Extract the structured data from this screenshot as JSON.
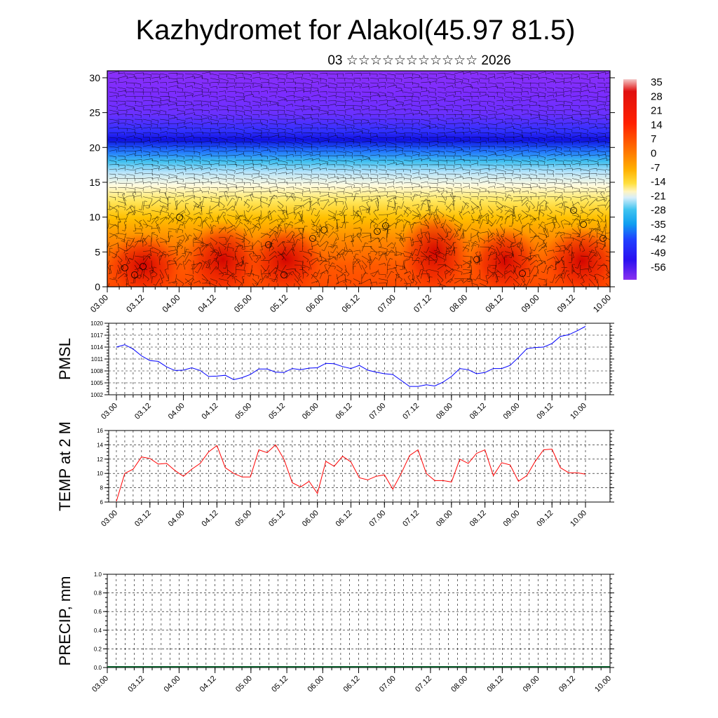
{
  "title": "Kazhydromet for Alakol(45.97 81.5)",
  "subtitle": "03 ☆☆☆☆☆☆☆☆☆☆☆ 2026",
  "time_labels": [
    "03.00",
    "03.12",
    "04.00",
    "04.12",
    "05.00",
    "05.12",
    "06.00",
    "06.12",
    "07.00",
    "07.12",
    "08.00",
    "08.12",
    "09.00",
    "09.12",
    "10.00"
  ],
  "chart_data": [
    {
      "type": "heatmap",
      "name": "upper-air-section",
      "y_ticks": [
        0,
        5,
        10,
        15,
        20,
        25,
        30
      ],
      "ylim": [
        0,
        31
      ],
      "colorbar_labels": [
        "35",
        "28",
        "21",
        "14",
        "7",
        "0",
        "-7",
        "-14",
        "-21",
        "-28",
        "-35",
        "-42",
        "-49",
        "-56"
      ],
      "colors": {
        "warm": "#d80000",
        "mid_warm": "#ff7a00",
        "yellow": "#ffe04a",
        "light": "#e8f2ff",
        "cyan": "#28b8f0",
        "blue": "#1a1aff",
        "purple": "#7a2cff"
      }
    },
    {
      "type": "line",
      "name": "PMSL",
      "ylabel": "PMSL",
      "y_ticks": [
        1002,
        1005,
        1008,
        1011,
        1014,
        1017,
        1020
      ],
      "ylim": [
        1002,
        1020
      ],
      "color": "#0000ff",
      "values": [
        1014.0,
        1014.6,
        1013.5,
        1011.8,
        1010.6,
        1010.4,
        1009.0,
        1008.1,
        1008.2,
        1008.8,
        1008.1,
        1006.6,
        1006.7,
        1006.9,
        1005.8,
        1006.3,
        1007.1,
        1008.5,
        1008.5,
        1007.7,
        1007.6,
        1008.6,
        1008.3,
        1008.7,
        1008.8,
        1009.9,
        1009.8,
        1009.1,
        1008.6,
        1009.4,
        1008.2,
        1007.7,
        1007.3,
        1007.1,
        1005.6,
        1004.1,
        1004.1,
        1004.5,
        1004.2,
        1005.2,
        1006.6,
        1008.6,
        1008.3,
        1007.3,
        1007.6,
        1008.6,
        1008.6,
        1009.4,
        1011.4,
        1013.6,
        1013.9,
        1014.0,
        1014.9,
        1016.7,
        1017.1,
        1018.1,
        1019.2
      ]
    },
    {
      "type": "line",
      "name": "TEMP at 2 M",
      "ylabel": "TEMP at 2 M",
      "y_ticks": [
        6,
        8,
        10,
        12,
        14,
        16
      ],
      "ylim": [
        6,
        16
      ],
      "color": "#ff0000",
      "values": [
        6.1,
        10.0,
        10.6,
        12.3,
        12.1,
        11.3,
        11.4,
        10.4,
        9.6,
        10.6,
        11.4,
        13.0,
        13.9,
        10.8,
        10.0,
        9.5,
        9.5,
        13.3,
        12.9,
        14.0,
        12.0,
        8.7,
        8.1,
        8.9,
        7.2,
        11.7,
        11.0,
        12.4,
        11.6,
        9.4,
        9.1,
        9.6,
        9.8,
        7.8,
        10.0,
        12.5,
        13.3,
        10.0,
        9.0,
        9.0,
        8.8,
        12.0,
        11.4,
        12.8,
        13.3,
        9.7,
        11.5,
        11.2,
        8.9,
        9.7,
        11.7,
        13.3,
        13.4,
        10.8,
        10.1,
        10.1,
        9.9
      ]
    },
    {
      "type": "bar",
      "name": "PRECIP, mm",
      "ylabel": "PRECIP, mm",
      "y_ticks": [
        "0.0",
        "0.2",
        "0.4",
        "0.6",
        "0.8",
        "1.0"
      ],
      "ylim": [
        0,
        1
      ],
      "values": []
    }
  ]
}
